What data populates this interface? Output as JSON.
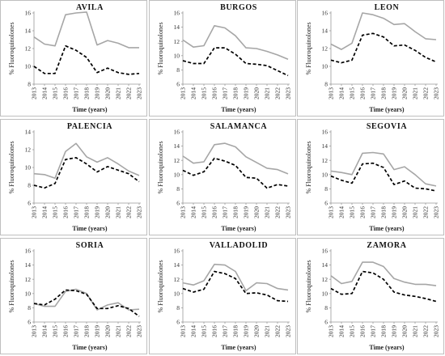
{
  "chart_data": [
    {
      "type": "line",
      "title": "AVILA",
      "xlabel": "Time (years)",
      "ylabel": "% Fluoroquinolones",
      "ylim": [
        8,
        16
      ],
      "yticks": [
        8,
        10,
        12,
        14,
        16
      ],
      "x": [
        "2013",
        "2014",
        "2015",
        "2016",
        "2017",
        "2018",
        "2019",
        "2020",
        "2021",
        "2022",
        "2023"
      ],
      "series": [
        {
          "style": "solid-gray",
          "values": [
            13.3,
            12.5,
            12.3,
            15.8,
            16.0,
            16.1,
            12.4,
            12.9,
            12.6,
            12.1,
            12.1
          ]
        },
        {
          "style": "dashed-black",
          "values": [
            10.0,
            9.2,
            9.2,
            12.3,
            11.8,
            11.0,
            9.3,
            9.8,
            9.3,
            9.1,
            9.2
          ]
        }
      ]
    },
    {
      "type": "line",
      "title": "BURGOS",
      "xlabel": "Time (years)",
      "ylabel": "% Fluoroquinolones",
      "ylim": [
        6,
        16
      ],
      "yticks": [
        6,
        8,
        10,
        12,
        14,
        16
      ],
      "x": [
        "2013",
        "2014",
        "2015",
        "2016",
        "2017",
        "2018",
        "2019",
        "2020",
        "2021",
        "2022",
        "2023"
      ],
      "series": [
        {
          "style": "solid-gray",
          "values": [
            12.2,
            11.2,
            11.4,
            14.2,
            13.9,
            12.8,
            11.1,
            11.0,
            10.6,
            10.1,
            9.5
          ]
        },
        {
          "style": "dashed-black",
          "values": [
            9.3,
            8.9,
            8.9,
            11.1,
            11.1,
            10.2,
            8.9,
            8.8,
            8.6,
            7.9,
            7.2
          ]
        }
      ]
    },
    {
      "type": "line",
      "title": "LEON",
      "xlabel": "Time (years)",
      "ylabel": "% Fluoroquinolones",
      "ylim": [
        8,
        16
      ],
      "yticks": [
        8,
        10,
        12,
        14,
        16
      ],
      "x": [
        "2013",
        "2014",
        "2015",
        "2016",
        "2017",
        "2018",
        "2019",
        "2020",
        "2021",
        "2022",
        "2023"
      ],
      "series": [
        {
          "style": "solid-gray",
          "values": [
            12.5,
            11.9,
            12.6,
            16.0,
            15.8,
            15.4,
            14.7,
            14.8,
            13.9,
            13.1,
            13.0
          ]
        },
        {
          "style": "dashed-black",
          "values": [
            10.7,
            10.4,
            10.7,
            13.5,
            13.7,
            13.3,
            12.3,
            12.4,
            11.8,
            11.0,
            10.5
          ]
        }
      ]
    },
    {
      "type": "line",
      "title": "PALENCIA",
      "xlabel": "Time (years)",
      "ylabel": "% Fluoroquinolones",
      "ylim": [
        6,
        14
      ],
      "yticks": [
        6,
        8,
        10,
        12,
        14
      ],
      "x": [
        "2013",
        "2014",
        "2015",
        "2016",
        "2017",
        "2018",
        "2019",
        "2020",
        "2021",
        "2022",
        "2023"
      ],
      "series": [
        {
          "style": "solid-gray",
          "values": [
            9.3,
            9.2,
            8.8,
            11.8,
            12.7,
            11.2,
            10.6,
            11.1,
            10.4,
            9.6,
            9.1
          ]
        },
        {
          "style": "dashed-black",
          "values": [
            8.0,
            7.7,
            8.2,
            10.9,
            11.1,
            10.4,
            9.5,
            10.1,
            9.7,
            9.3,
            8.4
          ]
        }
      ]
    },
    {
      "type": "line",
      "title": "SALAMANCA",
      "xlabel": "Time (years)",
      "ylabel": "% Fluoroquinolones",
      "ylim": [
        6,
        16
      ],
      "yticks": [
        6,
        8,
        10,
        12,
        14,
        16
      ],
      "x": [
        "2013",
        "2014",
        "2015",
        "2016",
        "2017",
        "2018",
        "2019",
        "2020",
        "2021",
        "2022",
        "2023"
      ],
      "series": [
        {
          "style": "solid-gray",
          "values": [
            12.6,
            11.6,
            11.8,
            14.2,
            14.4,
            13.9,
            12.5,
            11.7,
            10.9,
            10.7,
            10.1
          ]
        },
        {
          "style": "dashed-black",
          "values": [
            10.6,
            9.9,
            10.4,
            12.3,
            11.9,
            11.3,
            9.6,
            9.5,
            8.1,
            8.6,
            8.4
          ]
        }
      ]
    },
    {
      "type": "line",
      "title": "SEGOVIA",
      "xlabel": "Time (years)",
      "ylabel": "% Fluoroquinolones",
      "ylim": [
        6,
        16
      ],
      "yticks": [
        6,
        8,
        10,
        12,
        14,
        16
      ],
      "x": [
        "2013",
        "2014",
        "2015",
        "2016",
        "2017",
        "2018",
        "2019",
        "2020",
        "2021",
        "2022",
        "2023"
      ],
      "series": [
        {
          "style": "solid-gray",
          "values": [
            10.5,
            10.3,
            10.0,
            13.0,
            13.1,
            12.9,
            10.7,
            11.1,
            10.0,
            8.7,
            8.4
          ]
        },
        {
          "style": "dashed-black",
          "values": [
            9.8,
            9.2,
            8.8,
            11.5,
            11.6,
            11.0,
            8.6,
            9.1,
            8.1,
            8.0,
            7.7
          ]
        }
      ]
    },
    {
      "type": "line",
      "title": "SORIA",
      "xlabel": "Time (years)",
      "ylabel": "% Fluoroquinolones",
      "ylim": [
        6,
        16
      ],
      "yticks": [
        6,
        8,
        10,
        12,
        14,
        16
      ],
      "x": [
        "2013",
        "2014",
        "2015",
        "2016",
        "2017",
        "2018",
        "2019",
        "2020",
        "2021",
        "2022",
        "2023"
      ],
      "series": [
        {
          "style": "solid-gray",
          "values": [
            8.6,
            8.2,
            8.2,
            10.3,
            10.6,
            10.0,
            7.7,
            8.4,
            8.7,
            7.7,
            7.8
          ]
        },
        {
          "style": "dashed-black",
          "values": [
            8.6,
            8.4,
            9.2,
            10.5,
            10.4,
            9.9,
            7.9,
            7.9,
            8.3,
            7.9,
            6.8
          ]
        }
      ]
    },
    {
      "type": "line",
      "title": "VALLADOLID",
      "xlabel": "Time (years)",
      "ylabel": "% Fluoroquinolones",
      "ylim": [
        6,
        16
      ],
      "yticks": [
        6,
        8,
        10,
        12,
        14,
        16
      ],
      "x": [
        "2013",
        "2014",
        "2015",
        "2016",
        "2017",
        "2018",
        "2019",
        "2020",
        "2021",
        "2022",
        "2023"
      ],
      "series": [
        {
          "style": "solid-gray",
          "values": [
            11.5,
            11.2,
            11.8,
            14.1,
            14.0,
            13.1,
            10.4,
            11.5,
            11.4,
            10.7,
            10.5
          ]
        },
        {
          "style": "dashed-black",
          "values": [
            10.7,
            10.2,
            10.6,
            13.1,
            12.8,
            12.1,
            10.0,
            10.1,
            9.8,
            9.0,
            8.9
          ]
        }
      ]
    },
    {
      "type": "line",
      "title": "ZAMORA",
      "xlabel": "Time (years)",
      "ylabel": "% Fluoroquinolones",
      "ylim": [
        6,
        16
      ],
      "yticks": [
        6,
        8,
        10,
        12,
        14,
        16
      ],
      "x": [
        "2013",
        "2014",
        "2015",
        "2016",
        "2017",
        "2018",
        "2019",
        "2020",
        "2021",
        "2022",
        "2023"
      ],
      "series": [
        {
          "style": "solid-gray",
          "values": [
            12.5,
            11.4,
            11.7,
            14.4,
            14.4,
            13.8,
            12.1,
            11.6,
            11.3,
            11.3,
            11.1
          ]
        },
        {
          "style": "dashed-black",
          "values": [
            10.7,
            9.9,
            10.0,
            13.1,
            12.9,
            12.0,
            10.2,
            9.8,
            9.6,
            9.3,
            8.9
          ]
        }
      ]
    }
  ],
  "colors": {
    "solid": "#a6a6a6",
    "dashed": "#000000",
    "border": "#bfbfbf"
  }
}
